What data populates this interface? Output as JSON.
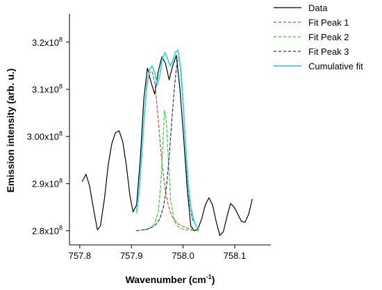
{
  "chart_data": {
    "type": "line",
    "xlabel": "Wavenumber (cm",
    "xlabel_sup": "-1",
    "xlabel_end": ")",
    "ylabel": "Emission intensity (arb. u.)",
    "xlim": [
      757.78,
      758.17
    ],
    "ylim": [
      277000000,
      326000000
    ],
    "x_ticks": [
      757.8,
      757.9,
      758.0,
      758.1
    ],
    "x_tick_labels": [
      "757.8",
      "757.9",
      "758.0",
      "758.1"
    ],
    "y_ticks": [
      280000000,
      290000000,
      300000000,
      310000000,
      320000000
    ],
    "y_tick_labels": [
      {
        "mantissa": "2.8x10",
        "exp": "8"
      },
      {
        "mantissa": "2.9x10",
        "exp": "8"
      },
      {
        "mantissa": "3.00x10",
        "exp": "8"
      },
      {
        "mantissa": "3.1x10",
        "exp": "8"
      },
      {
        "mantissa": "3.2x10",
        "exp": "8"
      }
    ],
    "grid": false,
    "legend_position": "top-right",
    "series": [
      {
        "name": "Data",
        "color": "#000000",
        "dash": "solid",
        "width": 1.2,
        "x": [
          757.805,
          757.812,
          757.819,
          757.826,
          757.834,
          757.84,
          757.848,
          757.855,
          757.862,
          757.869,
          757.876,
          757.883,
          757.89,
          757.897,
          757.903,
          757.91,
          757.917,
          757.924,
          757.931,
          757.938,
          757.945,
          757.952,
          757.959,
          757.966,
          757.973,
          757.98,
          757.987,
          757.994,
          758.001,
          758.008,
          758.015,
          758.022,
          758.029,
          758.036,
          758.043,
          758.05,
          758.057,
          758.064,
          758.071,
          758.078,
          758.085,
          758.092,
          758.099,
          758.106,
          758.113,
          758.12,
          758.127,
          758.134
        ],
        "y": [
          290500000,
          292000000,
          289500000,
          285000000,
          280200000,
          281000000,
          287000000,
          294000000,
          298500000,
          300800000,
          301200000,
          299000000,
          294000000,
          287500000,
          284000000,
          285500000,
          295000000,
          308000000,
          314500000,
          311500000,
          309000000,
          313800000,
          316900000,
          315500000,
          312000000,
          315000000,
          317200000,
          310000000,
          300000000,
          289000000,
          281000000,
          280000000,
          280500000,
          282500000,
          285500000,
          287000000,
          285500000,
          282000000,
          279000000,
          279800000,
          283000000,
          285800000,
          285000000,
          283500000,
          282000000,
          281800000,
          283500000,
          286700000
        ]
      },
      {
        "name": "Fit Peak 1",
        "color": "#c0504d",
        "dash": "4,3",
        "width": 1.2,
        "x": [
          757.91,
          757.915,
          757.92,
          757.925,
          757.93,
          757.935,
          757.94,
          757.945,
          757.95,
          757.955,
          757.96,
          757.965,
          757.97,
          757.975,
          757.98,
          757.99,
          758.0,
          758.01,
          758.02,
          758.03
        ],
        "y": [
          284500000,
          289000000,
          296000000,
          304000000,
          310500000,
          313500000,
          313800000,
          311500000,
          306000000,
          299500000,
          293500000,
          289000000,
          286000000,
          284000000,
          282800000,
          281500000,
          280900000,
          280500000,
          280300000,
          280200000
        ]
      },
      {
        "name": "Fit Peak 2",
        "color": "#33cc33",
        "dash": "4,3",
        "width": 1.2,
        "x": [
          757.925,
          757.935,
          757.945,
          757.952,
          757.957,
          757.961,
          757.964,
          757.967,
          757.971,
          757.976,
          757.983,
          757.993,
          758.005,
          758.015,
          758.03
        ],
        "y": [
          280200000,
          280500000,
          281500000,
          284000000,
          290000000,
          299000000,
          305500000,
          304000000,
          296000000,
          286500000,
          282000000,
          280600000,
          280200000,
          280100000,
          280000000
        ]
      },
      {
        "name": "Fit Peak 3",
        "color": "#2e2e7a",
        "dash": "4,3",
        "width": 1.2,
        "x": [
          757.91,
          757.93,
          757.945,
          757.955,
          757.962,
          757.968,
          757.973,
          757.978,
          757.983,
          757.988,
          757.992,
          757.996,
          758.0,
          758.004,
          758.008,
          758.013,
          758.018,
          758.025,
          758.03
        ],
        "y": [
          280000000,
          280300000,
          281000000,
          282500000,
          285000000,
          289500000,
          295500000,
          303000000,
          310000000,
          315500000,
          317000000,
          314500000,
          308000000,
          299500000,
          291500000,
          285500000,
          282500000,
          281000000,
          280500000
        ]
      },
      {
        "name": "Cumulative fit",
        "color": "#4dd6e6",
        "dash": "solid",
        "width": 2.0,
        "x": [
          757.91,
          757.915,
          757.92,
          757.925,
          757.93,
          757.935,
          757.94,
          757.945,
          757.95,
          757.955,
          757.96,
          757.965,
          757.97,
          757.975,
          757.98,
          757.985,
          757.99,
          757.995,
          758.0,
          758.005,
          758.01,
          758.015,
          758.02,
          758.025,
          758.03
        ],
        "y": [
          283800000,
          288500000,
          296000000,
          304500000,
          311000000,
          314200000,
          315000000,
          313500000,
          311000000,
          313000000,
          316500000,
          317800000,
          316500000,
          315000000,
          316000000,
          317800000,
          318300000,
          314500000,
          307000000,
          298000000,
          290000000,
          285000000,
          282500000,
          281000000,
          280500000
        ]
      }
    ]
  }
}
